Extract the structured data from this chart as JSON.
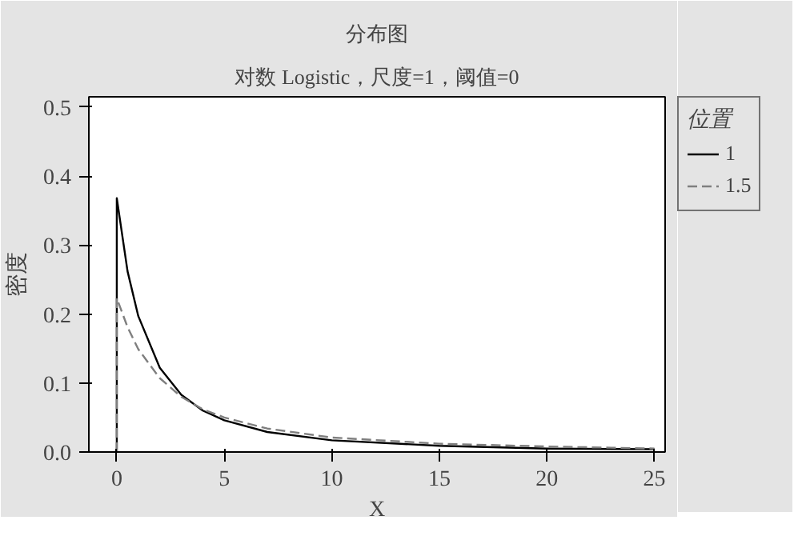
{
  "chart_data": {
    "type": "line",
    "title": "分布图",
    "subtitle": "对数 Logistic，尺度=1，阈值=0",
    "xlabel": "X",
    "ylabel": "密度",
    "legend_title": "位置",
    "legend": "right",
    "grid": false,
    "marker": "none",
    "x": [
      0,
      0,
      0.5,
      1,
      2,
      3,
      4,
      5,
      7,
      10,
      15,
      20,
      25
    ],
    "series": [
      {
        "name": "1",
        "color": "#000000",
        "line_style": "solid",
        "values": [
          0,
          0.368,
          0.262,
          0.197,
          0.122,
          0.083,
          0.06,
          0.046,
          0.029,
          0.017,
          0.009,
          0.005,
          0.004
        ]
      },
      {
        "name": "1.5",
        "color": "#7f7f7f",
        "line_style": "dashed",
        "values": [
          0,
          0.223,
          0.181,
          0.149,
          0.107,
          0.08,
          0.062,
          0.05,
          0.034,
          0.021,
          0.012,
          0.008,
          0.005
        ]
      }
    ],
    "xlim": [
      -1.3,
      25.5
    ],
    "ylim": [
      0,
      0.515
    ],
    "xticks": [
      0,
      5,
      10,
      15,
      20,
      25
    ],
    "yticks": [
      {
        "value": 0,
        "label": "0.0"
      },
      0.1,
      0.2,
      0.3,
      0.4,
      0.5
    ]
  }
}
